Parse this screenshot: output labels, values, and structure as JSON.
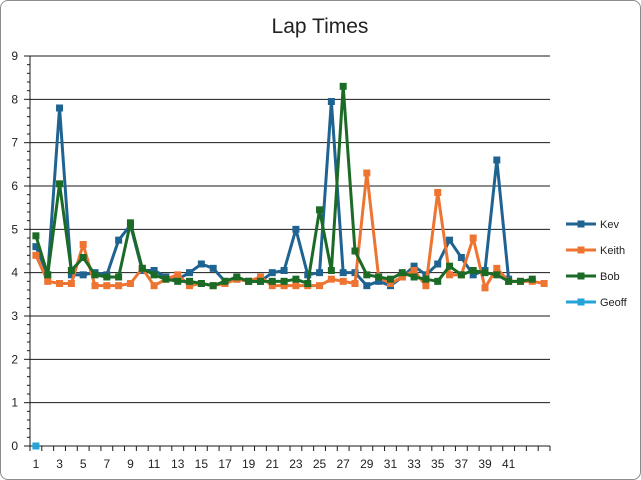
{
  "chart_data": {
    "type": "line",
    "title": "Lap Times",
    "xlabel": "",
    "ylabel": "",
    "ylim": [
      0,
      9
    ],
    "y_ticks": [
      0,
      1,
      2,
      3,
      4,
      5,
      6,
      7,
      8,
      9
    ],
    "x_tick_labels": [
      1,
      3,
      5,
      7,
      9,
      11,
      13,
      15,
      17,
      19,
      21,
      23,
      25,
      27,
      29,
      31,
      33,
      35,
      37,
      39,
      41
    ],
    "x_categories_count": 44,
    "grid": true,
    "legend_position": "right",
    "series": [
      {
        "name": "Kev",
        "color": "#1f6391",
        "x": [
          1,
          2,
          3,
          4,
          5,
          6,
          7,
          8,
          9,
          10,
          11,
          12,
          13,
          14,
          15,
          16,
          17,
          18,
          19,
          20,
          21,
          22,
          23,
          24,
          25,
          26,
          27,
          28,
          29,
          30,
          31,
          32,
          33,
          34,
          35,
          36,
          37,
          38,
          39,
          40,
          41
        ],
        "values": [
          4.6,
          3.95,
          7.8,
          3.95,
          3.95,
          4.0,
          3.95,
          4.75,
          5.1,
          4.05,
          4.05,
          3.9,
          3.85,
          4.0,
          4.2,
          4.1,
          3.8,
          3.85,
          3.8,
          3.8,
          4.0,
          4.05,
          5.0,
          3.95,
          4.0,
          7.95,
          4.0,
          4.0,
          3.7,
          3.8,
          3.7,
          3.9,
          4.15,
          3.95,
          4.2,
          4.75,
          4.35,
          3.95,
          4.05,
          6.6,
          3.85
        ]
      },
      {
        "name": "Keith",
        "color": "#ee7432",
        "x": [
          1,
          2,
          3,
          4,
          5,
          6,
          7,
          8,
          9,
          10,
          11,
          12,
          13,
          14,
          15,
          16,
          17,
          18,
          19,
          20,
          21,
          22,
          23,
          24,
          25,
          26,
          27,
          28,
          29,
          30,
          31,
          32,
          33,
          34,
          35,
          36,
          37,
          38,
          39,
          40,
          41,
          42,
          43,
          44
        ],
        "values": [
          4.4,
          3.8,
          3.75,
          3.75,
          4.65,
          3.7,
          3.7,
          3.7,
          3.75,
          4.1,
          3.7,
          3.85,
          3.95,
          3.7,
          3.75,
          3.7,
          3.75,
          3.85,
          3.8,
          3.9,
          3.7,
          3.7,
          3.7,
          3.7,
          3.7,
          3.85,
          3.8,
          3.75,
          6.3,
          3.9,
          3.75,
          3.9,
          4.05,
          3.7,
          5.85,
          3.95,
          3.95,
          4.8,
          3.65,
          4.1,
          3.8,
          3.8,
          3.8,
          3.75
        ]
      },
      {
        "name": "Bob",
        "color": "#1b6b26",
        "x": [
          1,
          2,
          3,
          4,
          5,
          6,
          7,
          8,
          9,
          10,
          11,
          12,
          13,
          14,
          15,
          16,
          17,
          18,
          19,
          20,
          21,
          22,
          23,
          24,
          25,
          26,
          27,
          28,
          29,
          30,
          31,
          32,
          33,
          34,
          35,
          36,
          37,
          38,
          39,
          40,
          41,
          42,
          43
        ],
        "values": [
          4.85,
          3.95,
          6.05,
          4.05,
          4.35,
          3.95,
          3.9,
          3.9,
          5.15,
          4.1,
          3.95,
          3.85,
          3.8,
          3.8,
          3.75,
          3.7,
          3.8,
          3.9,
          3.8,
          3.8,
          3.8,
          3.8,
          3.85,
          3.75,
          5.45,
          4.05,
          8.3,
          4.5,
          3.95,
          3.9,
          3.85,
          4.0,
          3.9,
          3.85,
          3.8,
          4.15,
          3.95,
          4.05,
          4.0,
          3.95,
          3.8,
          3.8,
          3.85
        ]
      },
      {
        "name": "Geoff",
        "color": "#23a3d8",
        "x": [
          1
        ],
        "values": [
          0
        ]
      }
    ]
  }
}
